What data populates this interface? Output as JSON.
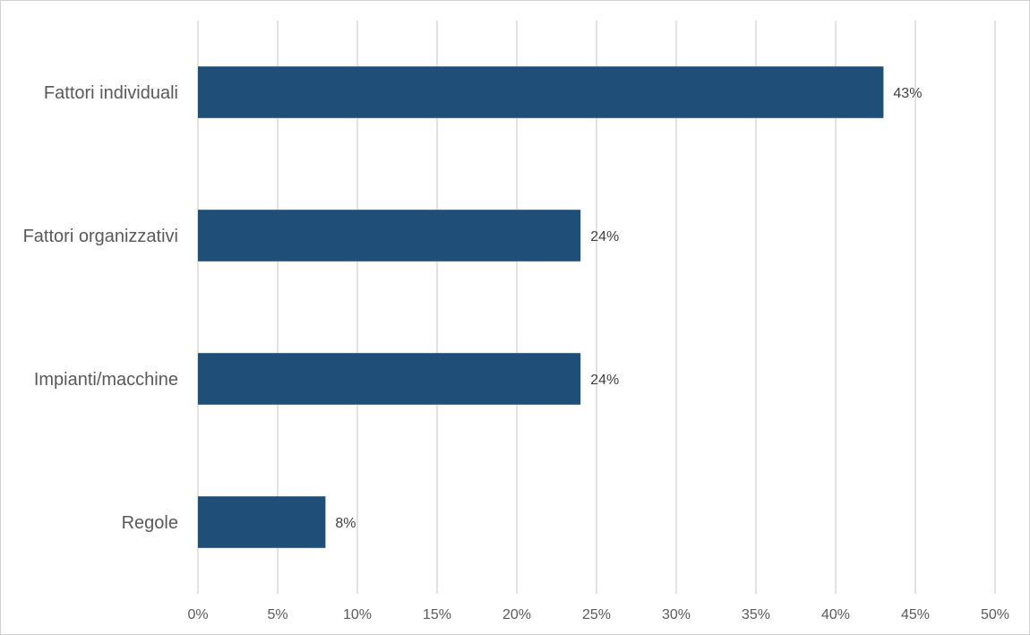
{
  "chart_data": {
    "type": "bar",
    "orientation": "horizontal",
    "categories": [
      "Fattori individuali",
      "Fattori organizzativi",
      "Impianti/macchine",
      "Regole"
    ],
    "values": [
      43,
      24,
      24,
      8
    ],
    "data_labels": [
      "43%",
      "24%",
      "24%",
      "8%"
    ],
    "xlim": [
      0,
      50
    ],
    "x_ticks": [
      0,
      5,
      10,
      15,
      20,
      25,
      30,
      35,
      40,
      45,
      50
    ],
    "x_tick_labels": [
      "0%",
      "5%",
      "10%",
      "15%",
      "20%",
      "25%",
      "30%",
      "35%",
      "40%",
      "45%",
      "50%"
    ],
    "title": "",
    "xlabel": "",
    "ylabel": "",
    "grid": true,
    "legend": "none",
    "bar_color": "#1f4e79",
    "grid_color": "#d9d9d9",
    "text_color": "#595959"
  }
}
